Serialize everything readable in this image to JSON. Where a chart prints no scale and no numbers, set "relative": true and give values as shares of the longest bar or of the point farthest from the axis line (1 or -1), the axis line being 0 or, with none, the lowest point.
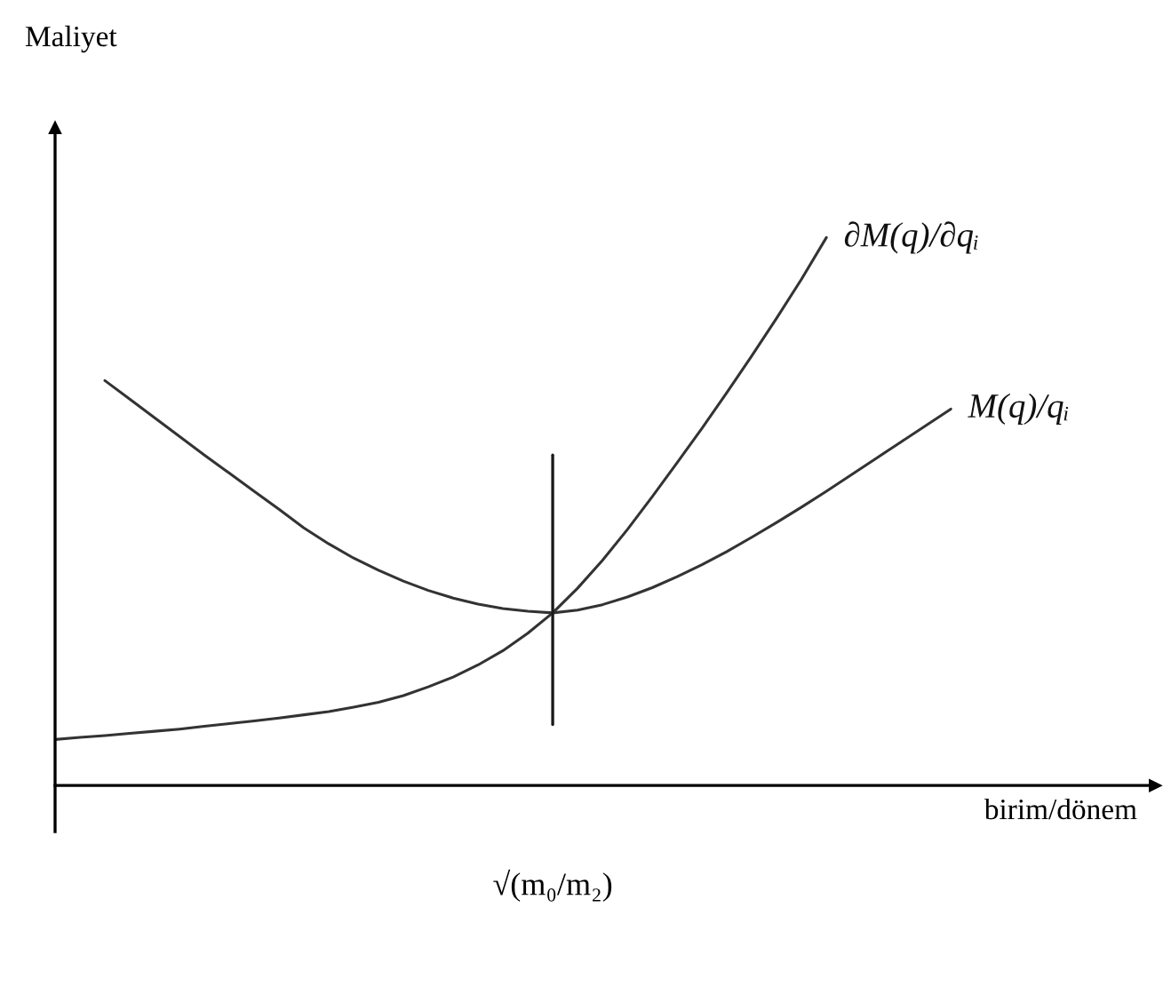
{
  "chart_data": {
    "type": "line",
    "relative": true,
    "xlabel": "birim/dönem",
    "line_style": "solid",
    "annotations": [
      "Maliyet",
      "√(m₀/m₂)"
    ],
    "categories": [
      null,
      null,
      null,
      null,
      null,
      null,
      null,
      null,
      null,
      null,
      null,
      null,
      null,
      null,
      null,
      null,
      null,
      null,
      null,
      null,
      null,
      null,
      null,
      null,
      null,
      null,
      null,
      null,
      null,
      null,
      null,
      null,
      null,
      null,
      null,
      null,
      null
    ],
    "series": [
      {
        "name": "∂M(q)/∂qᵢ",
        "color": "#333333",
        "values": [
          0.084,
          0.088,
          0.091,
          0.095,
          0.099,
          0.103,
          0.108,
          0.113,
          0.118,
          0.123,
          0.129,
          0.135,
          0.143,
          0.152,
          0.164,
          0.18,
          0.198,
          0.22,
          0.246,
          0.278,
          0.315,
          0.36,
          0.411,
          0.467,
          0.527,
          0.589,
          0.652,
          0.717,
          0.784,
          0.853,
          0.924,
          1.0,
          null,
          null,
          null,
          null,
          null
        ]
      },
      {
        "name": "M(q)/qᵢ",
        "color": "#333333",
        "values": [
          null,
          null,
          0.739,
          0.705,
          0.671,
          0.637,
          0.603,
          0.57,
          0.537,
          0.504,
          0.47,
          0.441,
          0.415,
          0.393,
          0.373,
          0.356,
          0.342,
          0.331,
          0.323,
          0.318,
          0.315,
          0.32,
          0.33,
          0.344,
          0.361,
          0.381,
          0.403,
          0.427,
          0.453,
          0.48,
          0.508,
          0.537,
          0.567,
          0.597,
          0.627,
          0.657,
          0.687
        ]
      }
    ]
  }
}
